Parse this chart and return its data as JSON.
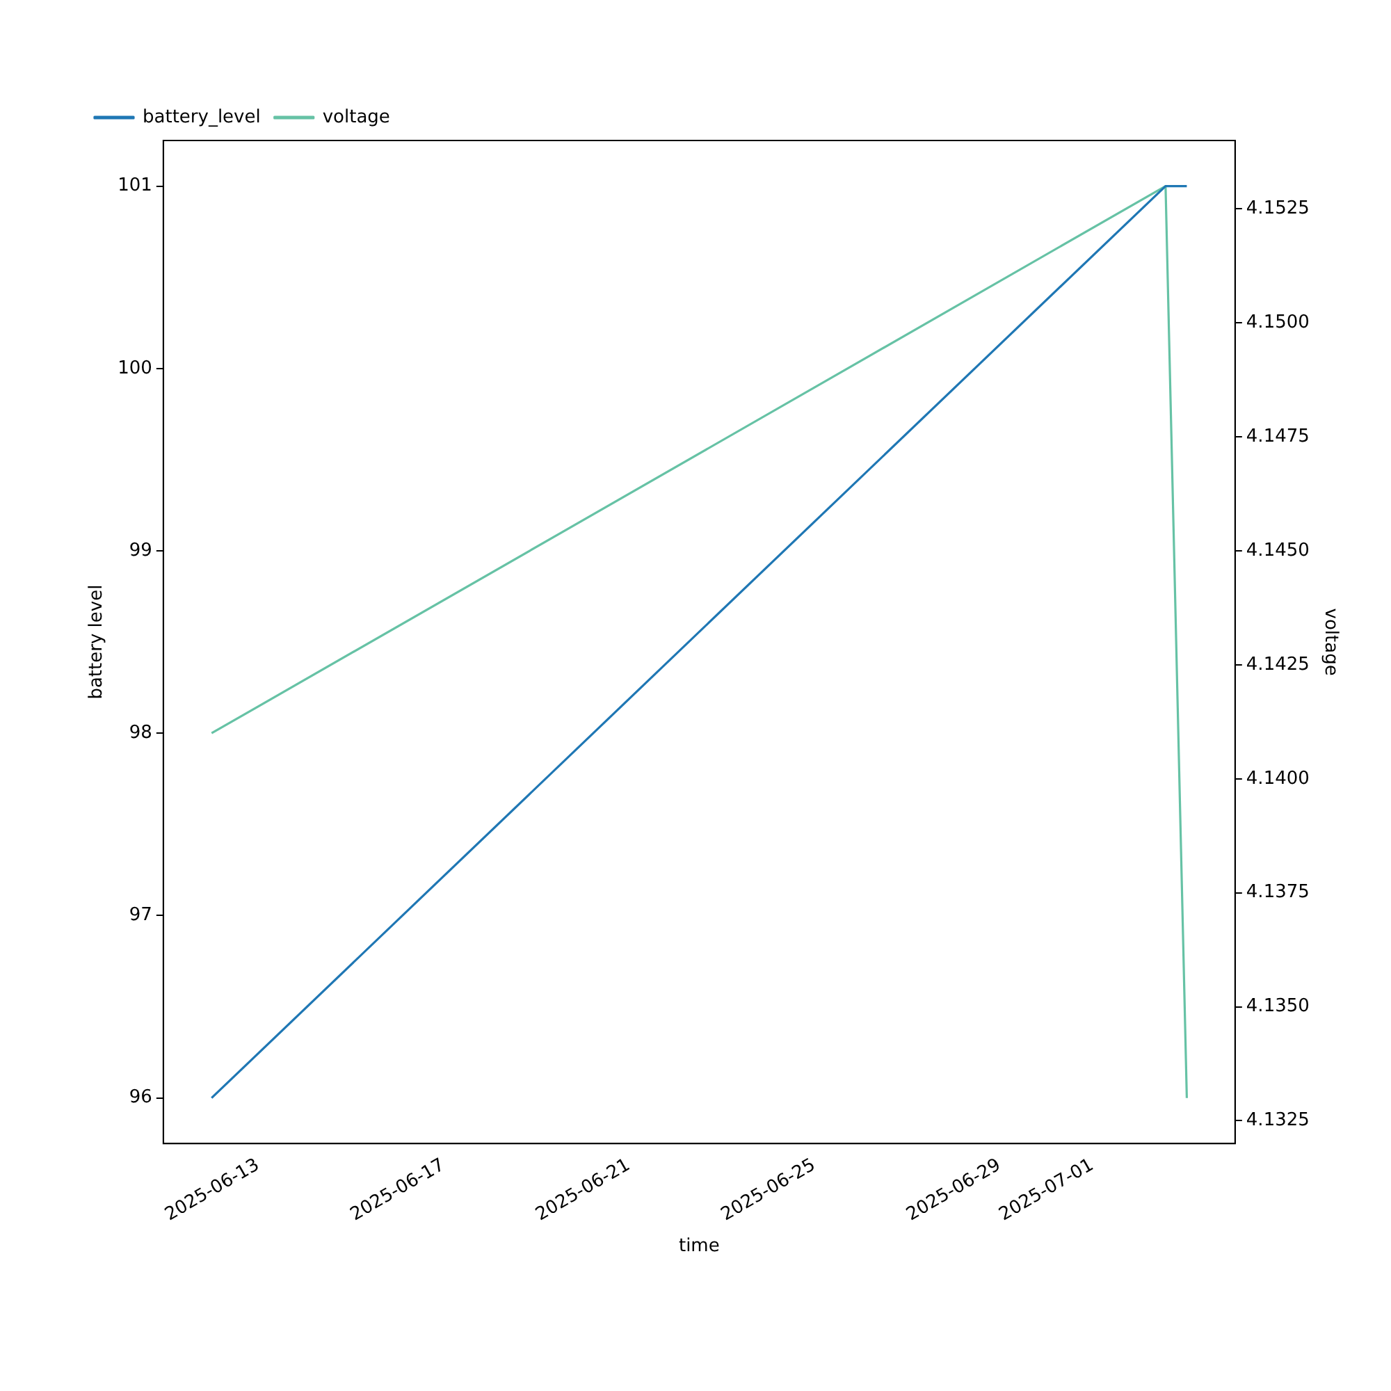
{
  "chart_data": {
    "type": "line",
    "xlabel": "time",
    "ylabel": "battery level",
    "y2label": "voltage",
    "series": [
      {
        "name": "battery_level",
        "color": "#1f77b4",
        "x": [
          "2025-06-12T00:00",
          "2025-07-02T14:00",
          "2025-07-03T01:00"
        ],
        "values": [
          96,
          101,
          101
        ]
      },
      {
        "name": "voltage",
        "color": "#66c2a5",
        "axis": "y2",
        "x": [
          "2025-06-12T00:00",
          "2025-07-02T14:00",
          "2025-07-03T01:00"
        ],
        "values": [
          4.141,
          4.153,
          4.133
        ]
      }
    ],
    "xlim": [
      "2025-06-10T23:00",
      "2025-07-04T02:00"
    ],
    "xticks": [
      "2025-06-13",
      "2025-06-17",
      "2025-06-21",
      "2025-06-25",
      "2025-06-29",
      "2025-07-01"
    ],
    "ylim": [
      95.75,
      101.25
    ],
    "yticks": [
      96,
      97,
      98,
      99,
      100,
      101
    ],
    "y2lim": [
      4.132,
      4.154
    ],
    "y2ticks": [
      {
        "value": 4.1325,
        "label": "4.1325"
      },
      {
        "value": 4.135,
        "label": "4.1350"
      },
      {
        "value": 4.1375,
        "label": "4.1375"
      },
      {
        "value": 4.14,
        "label": "4.1400"
      },
      {
        "value": 4.1425,
        "label": "4.1425"
      },
      {
        "value": 4.145,
        "label": "4.1450"
      },
      {
        "value": 4.1475,
        "label": "4.1475"
      },
      {
        "value": 4.15,
        "label": "4.1500"
      },
      {
        "value": 4.1525,
        "label": "4.1525"
      }
    ],
    "legend": "top left",
    "grid": false
  }
}
